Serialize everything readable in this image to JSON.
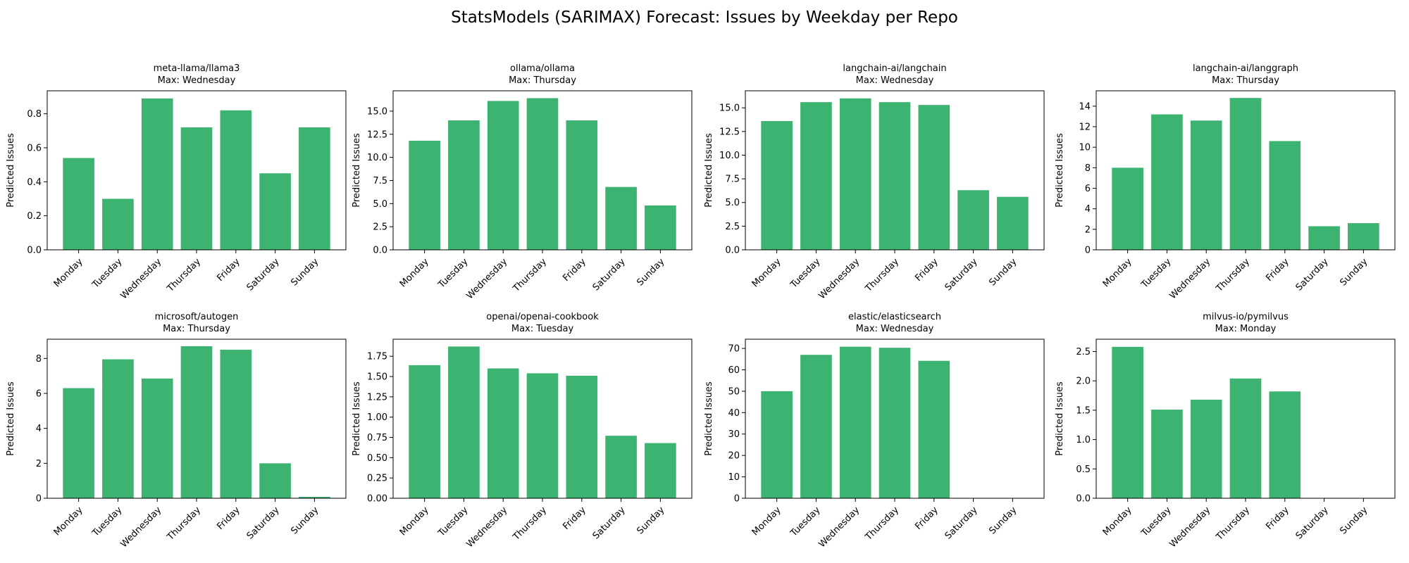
{
  "figure": {
    "title": "StatsModels (SARIMAX) Forecast: Issues by Weekday per Repo",
    "bar_color": "#3cb371"
  },
  "chart_data": [
    {
      "type": "bar",
      "repo": "meta-llama/llama3",
      "title_line2": "Max: Wednesday",
      "categories": [
        "Monday",
        "Tuesday",
        "Wednesday",
        "Thursday",
        "Friday",
        "Saturday",
        "Sunday"
      ],
      "values": [
        0.54,
        0.3,
        0.89,
        0.72,
        0.82,
        0.45,
        0.72
      ],
      "ylabel": "Predicted Issues",
      "ylim": [
        0,
        0.935
      ],
      "yticks": [
        0,
        0.2,
        0.4,
        0.6,
        0.8
      ],
      "ytick_labels": [
        "0.0",
        "0.2",
        "0.4",
        "0.6",
        "0.8"
      ]
    },
    {
      "type": "bar",
      "repo": "ollama/ollama",
      "title_line2": "Max: Thursday",
      "categories": [
        "Monday",
        "Tuesday",
        "Wednesday",
        "Thursday",
        "Friday",
        "Saturday",
        "Sunday"
      ],
      "values": [
        11.8,
        14.0,
        16.1,
        16.4,
        14.0,
        6.8,
        4.8
      ],
      "ylabel": "Predicted Issues",
      "ylim": [
        0,
        17.2
      ],
      "yticks": [
        0,
        2.5,
        5.0,
        7.5,
        10.0,
        12.5,
        15.0
      ],
      "ytick_labels": [
        "0.0",
        "2.5",
        "5.0",
        "7.5",
        "10.0",
        "12.5",
        "15.0"
      ]
    },
    {
      "type": "bar",
      "repo": "langchain-ai/langchain",
      "title_line2": "Max: Wednesday",
      "categories": [
        "Monday",
        "Tuesday",
        "Wednesday",
        "Thursday",
        "Friday",
        "Saturday",
        "Sunday"
      ],
      "values": [
        13.6,
        15.6,
        16.0,
        15.6,
        15.3,
        6.3,
        5.6
      ],
      "ylabel": "Predicted Issues",
      "ylim": [
        0,
        16.8
      ],
      "yticks": [
        0,
        2.5,
        5.0,
        7.5,
        10.0,
        12.5,
        15.0
      ],
      "ytick_labels": [
        "0.0",
        "2.5",
        "5.0",
        "7.5",
        "10.0",
        "12.5",
        "15.0"
      ]
    },
    {
      "type": "bar",
      "repo": "langchain-ai/langgraph",
      "title_line2": "Max: Thursday",
      "categories": [
        "Monday",
        "Tuesday",
        "Wednesday",
        "Thursday",
        "Friday",
        "Saturday",
        "Sunday"
      ],
      "values": [
        8.0,
        13.2,
        12.6,
        14.8,
        10.6,
        2.3,
        2.6
      ],
      "ylabel": "Predicted Issues",
      "ylim": [
        0,
        15.5
      ],
      "yticks": [
        0,
        2,
        4,
        6,
        8,
        10,
        12,
        14
      ],
      "ytick_labels": [
        "0",
        "2",
        "4",
        "6",
        "8",
        "10",
        "12",
        "14"
      ]
    },
    {
      "type": "bar",
      "repo": "microsoft/autogen",
      "title_line2": "Max: Thursday",
      "categories": [
        "Monday",
        "Tuesday",
        "Wednesday",
        "Thursday",
        "Friday",
        "Saturday",
        "Sunday"
      ],
      "values": [
        6.3,
        7.95,
        6.85,
        8.7,
        8.5,
        2.0,
        0.08
      ],
      "ylabel": "Predicted Issues",
      "ylim": [
        0,
        9.1
      ],
      "yticks": [
        0,
        2,
        4,
        6,
        8
      ],
      "ytick_labels": [
        "0",
        "2",
        "4",
        "6",
        "8"
      ]
    },
    {
      "type": "bar",
      "repo": "openai/openai-cookbook",
      "title_line2": "Max: Tuesday",
      "categories": [
        "Monday",
        "Tuesday",
        "Wednesday",
        "Thursday",
        "Friday",
        "Saturday",
        "Sunday"
      ],
      "values": [
        1.64,
        1.87,
        1.6,
        1.54,
        1.51,
        0.77,
        0.68
      ],
      "ylabel": "Predicted Issues",
      "ylim": [
        0,
        1.96
      ],
      "yticks": [
        0,
        0.25,
        0.5,
        0.75,
        1.0,
        1.25,
        1.5,
        1.75
      ],
      "ytick_labels": [
        "0.00",
        "0.25",
        "0.50",
        "0.75",
        "1.00",
        "1.25",
        "1.50",
        "1.75"
      ]
    },
    {
      "type": "bar",
      "repo": "elastic/elasticsearch",
      "title_line2": "Max: Wednesday",
      "categories": [
        "Monday",
        "Tuesday",
        "Wednesday",
        "Thursday",
        "Friday",
        "Saturday",
        "Sunday"
      ],
      "values": [
        50.0,
        67.0,
        70.8,
        70.3,
        64.2,
        0,
        0
      ],
      "ylabel": "Predicted Issues",
      "ylim": [
        0,
        74.3
      ],
      "yticks": [
        0,
        10,
        20,
        30,
        40,
        50,
        60,
        70
      ],
      "ytick_labels": [
        "0",
        "10",
        "20",
        "30",
        "40",
        "50",
        "60",
        "70"
      ]
    },
    {
      "type": "bar",
      "repo": "milvus-io/pymilvus",
      "title_line2": "Max: Monday",
      "categories": [
        "Monday",
        "Tuesday",
        "Wednesday",
        "Thursday",
        "Friday",
        "Saturday",
        "Sunday"
      ],
      "values": [
        2.58,
        1.51,
        1.68,
        2.04,
        1.82,
        0,
        0
      ],
      "ylabel": "Predicted Issues",
      "ylim": [
        0,
        2.71
      ],
      "yticks": [
        0,
        0.5,
        1.0,
        1.5,
        2.0,
        2.5
      ],
      "ytick_labels": [
        "0.0",
        "0.5",
        "1.0",
        "1.5",
        "2.0",
        "2.5"
      ]
    }
  ]
}
